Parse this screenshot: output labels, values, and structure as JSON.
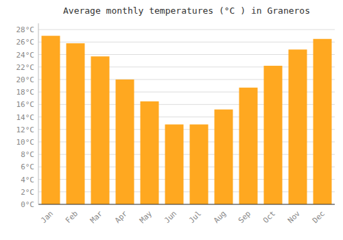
{
  "chart_data": {
    "type": "bar",
    "title": "Average monthly temperatures (°C ) in Graneros",
    "categories": [
      "Jan",
      "Feb",
      "Mar",
      "Apr",
      "May",
      "Jun",
      "Jul",
      "Aug",
      "Sep",
      "Oct",
      "Nov",
      "Dec"
    ],
    "values": [
      27,
      25.8,
      23.7,
      20.0,
      16.5,
      12.8,
      12.8,
      15.2,
      18.7,
      22.2,
      24.8,
      26.5
    ],
    "color": "#FFA820",
    "ylim": [
      0,
      29
    ],
    "yticks": [
      {
        "value": 0,
        "label": "0°C"
      },
      {
        "value": 2,
        "label": "2°C"
      },
      {
        "value": 4,
        "label": "4°C"
      },
      {
        "value": 6,
        "label": "6°C"
      },
      {
        "value": 8,
        "label": "8°C"
      },
      {
        "value": 10,
        "label": "10°C"
      },
      {
        "value": 12,
        "label": "12°C"
      },
      {
        "value": 14,
        "label": "14°C"
      },
      {
        "value": 16,
        "label": "16°C"
      },
      {
        "value": 18,
        "label": "18°C"
      },
      {
        "value": 20,
        "label": "20°C"
      },
      {
        "value": 22,
        "label": "22°C"
      },
      {
        "value": 24,
        "label": "24°C"
      },
      {
        "value": 26,
        "label": "26°C"
      },
      {
        "value": 28,
        "label": "28°C"
      }
    ],
    "grid": true
  }
}
